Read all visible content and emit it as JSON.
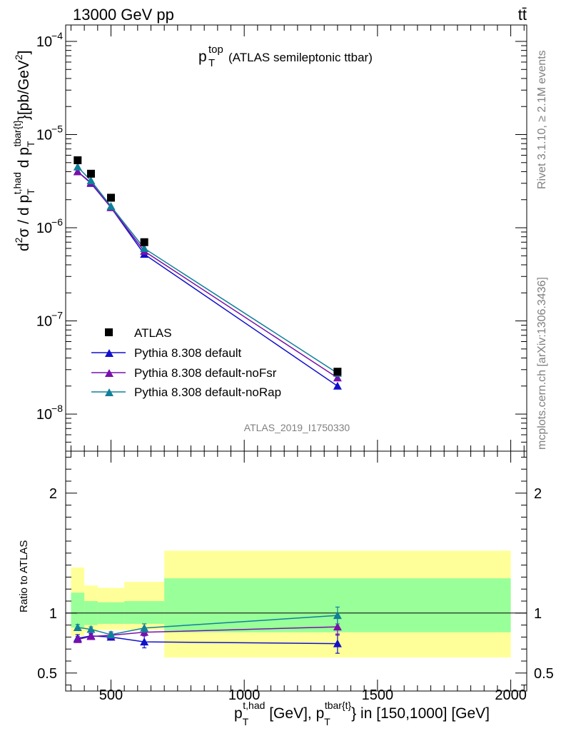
{
  "header": {
    "left": "13000 GeV pp",
    "right": "tt̄"
  },
  "side_text": {
    "rivet": "Rivet 3.1.10, ≥ 2.1M events",
    "mcplots": "mcplots.cern.ch [arXiv:1306.3436]"
  },
  "watermark": "ATLAS_2019_I1750330",
  "colors": {
    "data": "#000000",
    "default": "#1010cc",
    "noFsr": "#7a10aa",
    "noRap": "#10809a",
    "band_inner": "#99ff99",
    "band_outer": "#ffff99"
  },
  "chart_data": [
    {
      "type": "scatter",
      "panel": "main",
      "title_main": "p",
      "title_sup": "top",
      "title_sub": "T",
      "title_rest": "(ATLAS semileptonic ttbar)",
      "ylabel": "d²σ / d p_T^{t,had} d p_T^{tbar{t}}[pb/GeV²]",
      "yscale": "log",
      "ylim": [
        4e-09,
        0.00015
      ],
      "xlim": [
        330,
        2060
      ],
      "ytick_labels": [
        "10",
        "10",
        "10",
        "10",
        "10"
      ],
      "ytick_exps": [
        "−4",
        "−5",
        "−6",
        "−7",
        "−8"
      ],
      "ytick_values": [
        0.0001,
        1e-05,
        1e-06,
        1e-07,
        1e-08
      ],
      "legend": {
        "position": "lower-left",
        "entries": [
          "ATLAS",
          "Pythia 8.308 default",
          "Pythia 8.308 default-noFsr",
          "Pythia 8.308 default-noRap"
        ]
      },
      "series": [
        {
          "name": "ATLAS",
          "x": [
            375,
            425,
            500,
            625,
            1350
          ],
          "y": [
            5.3e-06,
            3.8e-06,
            2.1e-06,
            7e-07,
            2.85e-08
          ]
        },
        {
          "name": "Pythia 8.308 default",
          "x": [
            375,
            425,
            500,
            625,
            1350
          ],
          "y": [
            4e-06,
            3e-06,
            1.65e-06,
            5.2e-07,
            2e-08
          ]
        },
        {
          "name": "Pythia 8.308 default-noFsr",
          "x": [
            375,
            425,
            500,
            625,
            1350
          ],
          "y": [
            4e-06,
            3.05e-06,
            1.65e-06,
            5.6e-07,
            2.45e-08
          ]
        },
        {
          "name": "Pythia 8.308 default-noRap",
          "x": [
            375,
            425,
            500,
            625,
            1350
          ],
          "y": [
            4.5e-06,
            3.2e-06,
            1.7e-06,
            6e-07,
            2.75e-08
          ]
        }
      ]
    },
    {
      "type": "scatter",
      "panel": "ratio",
      "ylabel": "Ratio to ATLAS",
      "xlabel": "p_T^{t,had} [GeV], p_T^{tbar{t}} in [150,1000] [GeV]",
      "ylim": [
        0.35,
        2.35
      ],
      "xlim": [
        330,
        2060
      ],
      "ytick_labels": [
        "2",
        "1",
        "0.5"
      ],
      "ytick_values": [
        2,
        1,
        0.5
      ],
      "xtick_labels": [
        "500",
        "1000",
        "1500",
        "2000"
      ],
      "xtick_values": [
        500,
        1000,
        1500,
        2000
      ],
      "bands": [
        {
          "x0": 350,
          "x1": 400,
          "inner": [
            0.88,
            1.17
          ],
          "outer": [
            0.81,
            1.38
          ]
        },
        {
          "x0": 400,
          "x1": 450,
          "inner": [
            0.9,
            1.1
          ],
          "outer": [
            0.84,
            1.23
          ]
        },
        {
          "x0": 450,
          "x1": 550,
          "inner": [
            0.91,
            1.09
          ],
          "outer": [
            0.86,
            1.21
          ]
        },
        {
          "x0": 550,
          "x1": 700,
          "inner": [
            0.91,
            1.1
          ],
          "outer": [
            0.86,
            1.26
          ]
        },
        {
          "x0": 700,
          "x1": 2000,
          "inner": [
            0.84,
            1.29
          ],
          "outer": [
            0.63,
            1.52
          ]
        }
      ],
      "series": [
        {
          "name": "Pythia 8.308 default",
          "x": [
            375,
            425,
            500,
            625,
            1350
          ],
          "y": [
            0.79,
            0.81,
            0.8,
            0.76,
            0.745
          ],
          "err": [
            0.03,
            0.02,
            0.025,
            0.05,
            0.08
          ]
        },
        {
          "name": "Pythia 8.308 default-noFsr",
          "x": [
            375,
            425,
            500,
            625,
            1350
          ],
          "y": [
            0.78,
            0.805,
            0.815,
            0.84,
            0.885
          ],
          "err": [
            0.025,
            0.02,
            0.02,
            0.03,
            0.07
          ]
        },
        {
          "name": "Pythia 8.308 default-noRap",
          "x": [
            375,
            425,
            500,
            625,
            1350
          ],
          "y": [
            0.88,
            0.865,
            0.82,
            0.875,
            0.98
          ],
          "err": [
            0.025,
            0.02,
            0.025,
            0.035,
            0.07
          ]
        }
      ]
    }
  ]
}
